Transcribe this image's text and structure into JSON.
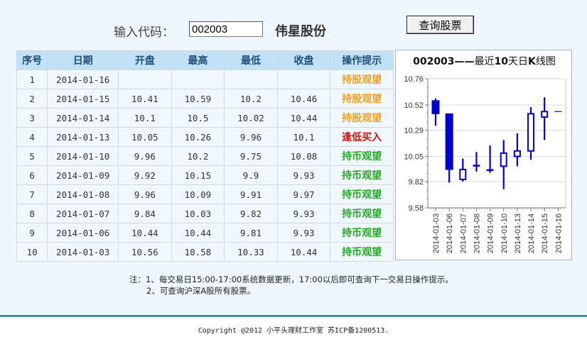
{
  "search": {
    "label": "输入代码：",
    "code_value": "002003",
    "stock_name": "伟星股份",
    "query_button": "查询股票"
  },
  "table": {
    "headers": [
      "序号",
      "日期",
      "开盘",
      "最高",
      "最低",
      "收盘",
      "操作提示"
    ],
    "rows": [
      {
        "no": "1",
        "date": "2014-01-16",
        "open": "",
        "high": "",
        "low": "",
        "close": "",
        "tip": "持股观望",
        "tip_type": "hold"
      },
      {
        "no": "2",
        "date": "2014-01-15",
        "open": "10.41",
        "high": "10.59",
        "low": "10.2",
        "close": "10.46",
        "tip": "持股观望",
        "tip_type": "hold"
      },
      {
        "no": "3",
        "date": "2014-01-14",
        "open": "10.1",
        "high": "10.5",
        "low": "10.02",
        "close": "10.44",
        "tip": "持股观望",
        "tip_type": "hold"
      },
      {
        "no": "4",
        "date": "2014-01-13",
        "open": "10.05",
        "high": "10.26",
        "low": "9.96",
        "close": "10.1",
        "tip": "逢低买入",
        "tip_type": "buy"
      },
      {
        "no": "5",
        "date": "2014-01-10",
        "open": "9.96",
        "high": "10.2",
        "low": "9.75",
        "close": "10.08",
        "tip": "持币观望",
        "tip_type": "wait"
      },
      {
        "no": "6",
        "date": "2014-01-09",
        "open": "9.92",
        "high": "10.15",
        "low": "9.9",
        "close": "9.93",
        "tip": "持币观望",
        "tip_type": "wait"
      },
      {
        "no": "7",
        "date": "2014-01-08",
        "open": "9.96",
        "high": "10.09",
        "low": "9.91",
        "close": "9.97",
        "tip": "持币观望",
        "tip_type": "wait"
      },
      {
        "no": "8",
        "date": "2014-01-07",
        "open": "9.84",
        "high": "10.03",
        "low": "9.82",
        "close": "9.93",
        "tip": "持币观望",
        "tip_type": "wait"
      },
      {
        "no": "9",
        "date": "2014-01-06",
        "open": "10.44",
        "high": "10.44",
        "low": "9.81",
        "close": "9.93",
        "tip": "持币观望",
        "tip_type": "wait"
      },
      {
        "no": "10",
        "date": "2014-01-03",
        "open": "10.56",
        "high": "10.58",
        "low": "10.33",
        "close": "10.44",
        "tip": "持币观望",
        "tip_type": "wait"
      }
    ],
    "tip_colors": {
      "hold": "#f0a020",
      "buy": "#cc1111",
      "wait": "#22aa22"
    }
  },
  "chart": {
    "title_code": "002003",
    "title_dash": "——",
    "title_text_1": "最近",
    "title_num": "10",
    "title_text_2": "天日",
    "title_k": "K",
    "title_text_3": "线图"
  },
  "chart_data": {
    "type": "candlestick",
    "title": "002003——最近10天日K线图",
    "xlabel": "",
    "ylabel": "",
    "ylim": [
      9.58,
      10.76
    ],
    "y_ticks": [
      "10.76",
      "10.52",
      "10.29",
      "10.05",
      "9.82",
      "9.58"
    ],
    "categories": [
      "2014-01-03",
      "2014-01-06",
      "2014-01-07",
      "2014-01-08",
      "2014-01-09",
      "2014-01-10",
      "2014-01-13",
      "2014-01-14",
      "2014-01-15",
      "2014-01-16"
    ],
    "series": [
      {
        "name": "open",
        "values": [
          10.56,
          10.44,
          9.84,
          9.96,
          9.92,
          9.96,
          10.05,
          10.1,
          10.41,
          10.46
        ]
      },
      {
        "name": "high",
        "values": [
          10.58,
          10.44,
          10.03,
          10.09,
          10.15,
          10.2,
          10.26,
          10.5,
          10.59,
          10.46
        ]
      },
      {
        "name": "low",
        "values": [
          10.33,
          9.81,
          9.82,
          9.91,
          9.9,
          9.75,
          9.96,
          10.02,
          10.2,
          10.46
        ]
      },
      {
        "name": "close",
        "values": [
          10.44,
          9.93,
          9.93,
          9.97,
          9.93,
          10.08,
          10.1,
          10.44,
          10.46,
          10.46
        ]
      }
    ],
    "grid": true,
    "color": "#0000cc"
  },
  "notes": {
    "line1": "注：1、每交易日15:00-17:00系统数据更新，17:00以后即可查询下一交易日操作提示。",
    "line2": "2、可查询沪深A股所有股票。"
  },
  "footer": {
    "copyright": "Copyright @2012 小平头理财工作室 苏ICP备1200513."
  }
}
